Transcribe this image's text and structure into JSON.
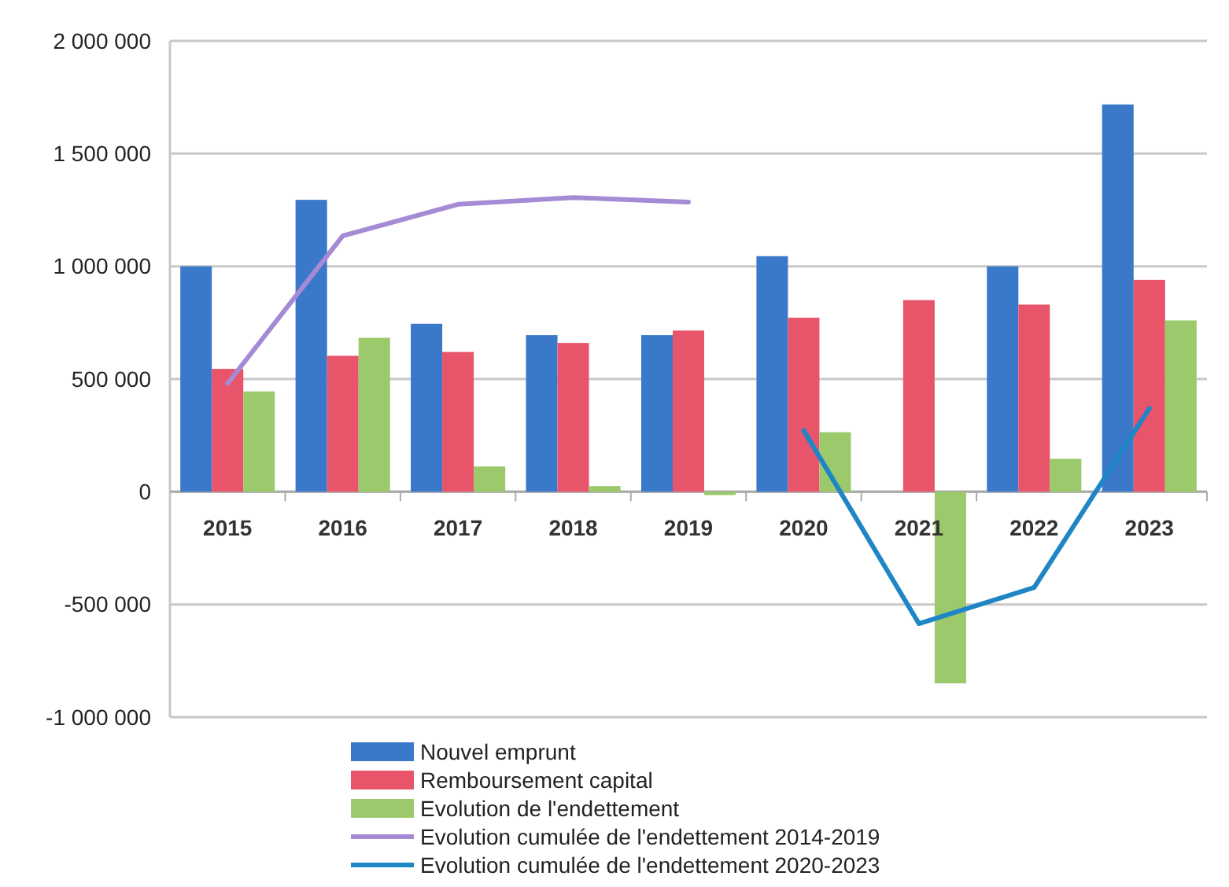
{
  "chart_data": {
    "type": "bar",
    "categories": [
      "2015",
      "2016",
      "2017",
      "2018",
      "2019",
      "2020",
      "2021",
      "2022",
      "2023"
    ],
    "series": [
      {
        "name": "Nouvel emprunt",
        "color": "#3a78c9",
        "values": [
          1000000,
          1295000,
          745000,
          695000,
          695000,
          1045000,
          null,
          1000000,
          1718000
        ]
      },
      {
        "name": "Remboursement capital",
        "color": "#e8546a",
        "values": [
          545000,
          603000,
          620000,
          660000,
          715000,
          772000,
          850000,
          830000,
          940000
        ]
      },
      {
        "name": "Evolution de l'endettement",
        "color": "#9cc96b",
        "values": [
          445000,
          683000,
          112000,
          25000,
          -15000,
          264000,
          -850000,
          146000,
          760000
        ]
      },
      {
        "name": "Evolution cumulée de l'endettement 2014-2019",
        "type": "line",
        "color": "#a58ad6",
        "values": [
          480000,
          1135000,
          1275000,
          1305000,
          1285000,
          null,
          null,
          null,
          null
        ]
      },
      {
        "name": "Evolution cumulée de l'endettement 2020-2023",
        "type": "line",
        "color": "#1f86c6",
        "values": [
          null,
          null,
          null,
          null,
          null,
          272000,
          -585000,
          -425000,
          370000
        ]
      }
    ],
    "ylim": [
      -1000000,
      2000000
    ],
    "yticks": [
      {
        "value": -1000000,
        "label": "-1 000 000"
      },
      {
        "value": -500000,
        "label": "-500 000"
      },
      {
        "value": 0,
        "label": "0"
      },
      {
        "value": 500000,
        "label": "500 000"
      },
      {
        "value": 1000000,
        "label": "1 000 000"
      },
      {
        "value": 1500000,
        "label": "1 500 000"
      },
      {
        "value": 2000000,
        "label": "2 000 000"
      }
    ],
    "grid": "y",
    "legend": "bottom",
    "marker": "none",
    "line_style": "solid"
  }
}
